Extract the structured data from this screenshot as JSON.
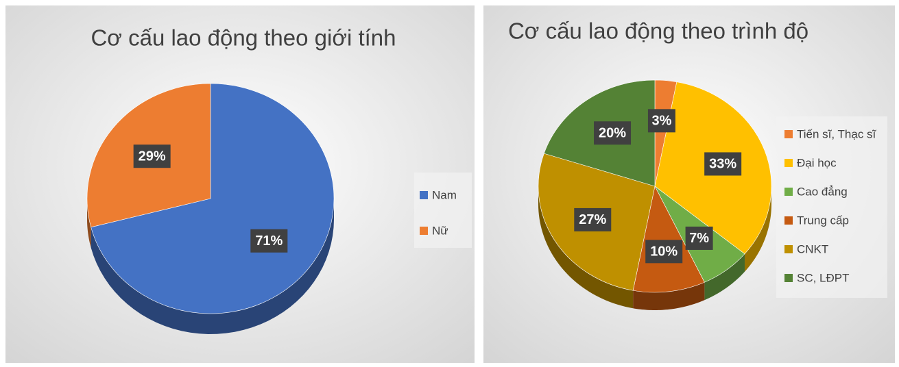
{
  "chart_data": [
    {
      "type": "pie",
      "title": "Cơ cấu lao động theo giới tính",
      "categories": [
        "Nam",
        "Nữ"
      ],
      "values": [
        71,
        29
      ],
      "value_labels": [
        "71%",
        "29%"
      ],
      "colors": [
        "#4472c4",
        "#ed7d31"
      ],
      "legend": "right"
    },
    {
      "type": "pie",
      "title": "Cơ cấu lao động theo trình độ",
      "categories": [
        "Tiến sĩ, Thạc sĩ",
        "Đại học",
        "Cao đẳng",
        "Trung cấp",
        "CNKT",
        "SC, LĐPT"
      ],
      "values": [
        3,
        33,
        7,
        10,
        27,
        20
      ],
      "value_labels": [
        "3%",
        "33%",
        "7%",
        "10%",
        "27%",
        "20%"
      ],
      "colors": [
        "#ed7d31",
        "#ffc000",
        "#70ad47",
        "#c55a11",
        "#bf9000",
        "#548235"
      ],
      "legend": "right"
    }
  ]
}
